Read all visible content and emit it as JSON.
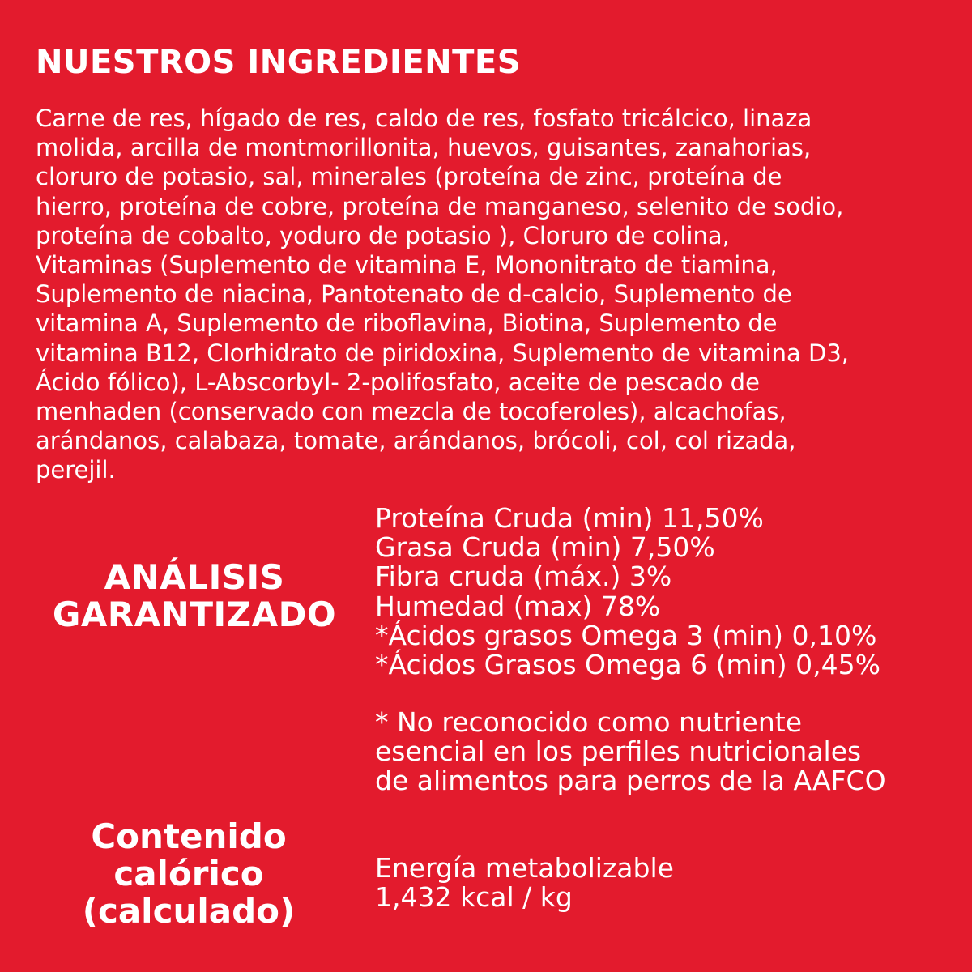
{
  "colors": {
    "background": "#e31b2d",
    "text": "#ffffff"
  },
  "title": "NUESTROS INGREDIENTES",
  "ingredients_lines": [
    "Carne de res, hígado de res, caldo de res, fosfato tricálcico, linaza",
    "molida, arcilla de montmorillonita, huevos, guisantes, zanahorias,",
    "cloruro de potasio, sal, minerales (proteína de zinc, proteína de",
    "hierro, proteína de cobre, proteína de manganeso, selenito de sodio,",
    "proteína de cobalto, yoduro de potasio ), Cloruro de colina,",
    "Vitaminas (Suplemento de vitamina E, Mononitrato de tiamina,",
    "Suplemento de niacina, Pantotenato de d-calcio, Suplemento de",
    "vitamina A, Suplemento de riboflavina, Biotina, Suplemento de",
    "vitamina B12, Clorhidrato de piridoxina, Suplemento de vitamina D3,",
    "Ácido fólico), L-Abscorbyl- 2-polifosfato, aceite de pescado de",
    "menhaden (conservado con mezcla de tocoferoles), alcachofas,",
    "arándanos, calabaza, tomate, arándanos, brócoli, col, col rizada,",
    "perejil."
  ],
  "analysis": {
    "heading_lines": [
      "ANÁLISIS",
      "GARANTIZADO"
    ],
    "items": [
      "Proteína Cruda (min) 11,50%",
      "Grasa Cruda (min) 7,50%",
      "Fibra cruda (máx.) 3%",
      "Humedad (max) 78%",
      "*Ácidos grasos Omega 3 (min) 0,10%",
      "*Ácidos Grasos Omega 6 (min) 0,45%"
    ],
    "note_lines": [
      "* No reconocido como nutriente",
      "esencial en los perfiles nutricionales",
      "de alimentos para perros de la AAFCO"
    ]
  },
  "calories": {
    "heading_lines": [
      "Contenido",
      "calórico",
      "(calculado)"
    ],
    "label": "Energía metabolizable",
    "value": "1,432 kcal / kg"
  }
}
